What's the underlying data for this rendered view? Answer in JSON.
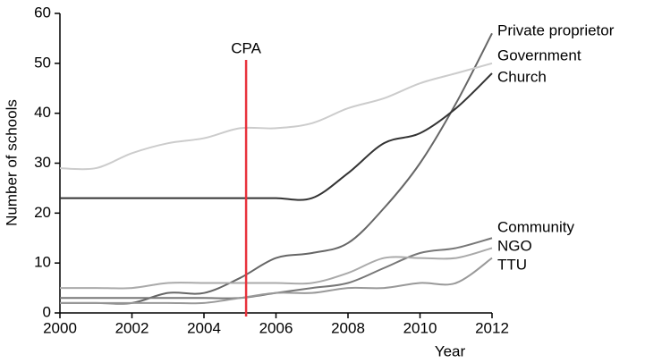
{
  "chart_data": {
    "type": "line",
    "x": [
      2000,
      2001,
      2002,
      2003,
      2004,
      2005,
      2006,
      2007,
      2008,
      2009,
      2010,
      2011,
      2012
    ],
    "series": [
      {
        "name": "Private proprietor",
        "color": "#666666",
        "values": [
          2,
          2,
          2,
          4,
          4,
          7,
          11,
          12,
          14,
          21,
          30,
          42,
          56
        ]
      },
      {
        "name": "Government",
        "color": "#cccccc",
        "values": [
          29,
          29,
          32,
          34,
          35,
          37,
          37,
          38,
          41,
          43,
          46,
          48,
          50
        ]
      },
      {
        "name": "Church",
        "color": "#333333",
        "values": [
          23,
          23,
          23,
          23,
          23,
          23,
          23,
          23,
          28,
          34,
          36,
          41,
          48
        ]
      },
      {
        "name": "Community",
        "color": "#777777",
        "values": [
          3,
          3,
          3,
          3,
          3,
          3,
          4,
          5,
          6,
          9,
          12,
          13,
          15
        ]
      },
      {
        "name": "NGO",
        "color": "#aaaaaa",
        "values": [
          5,
          5,
          5,
          6,
          6,
          6,
          6,
          6,
          8,
          11,
          11,
          11,
          13
        ]
      },
      {
        "name": "TTU",
        "color": "#999999",
        "values": [
          2,
          2,
          2,
          2,
          2,
          3,
          4,
          4,
          5,
          5,
          6,
          6,
          11
        ]
      }
    ],
    "annotations": [
      {
        "text": "CPA",
        "x": 2005.17,
        "color": "#e8323c"
      }
    ],
    "xlabel": "Year",
    "ylabel": "Number of schools",
    "xlim": [
      2000,
      2012
    ],
    "xticks": [
      2000,
      2002,
      2004,
      2006,
      2008,
      2010,
      2012
    ],
    "ylim": [
      0,
      60
    ],
    "yticks": [
      0,
      10,
      20,
      30,
      40,
      50,
      60
    ],
    "grid": false
  }
}
